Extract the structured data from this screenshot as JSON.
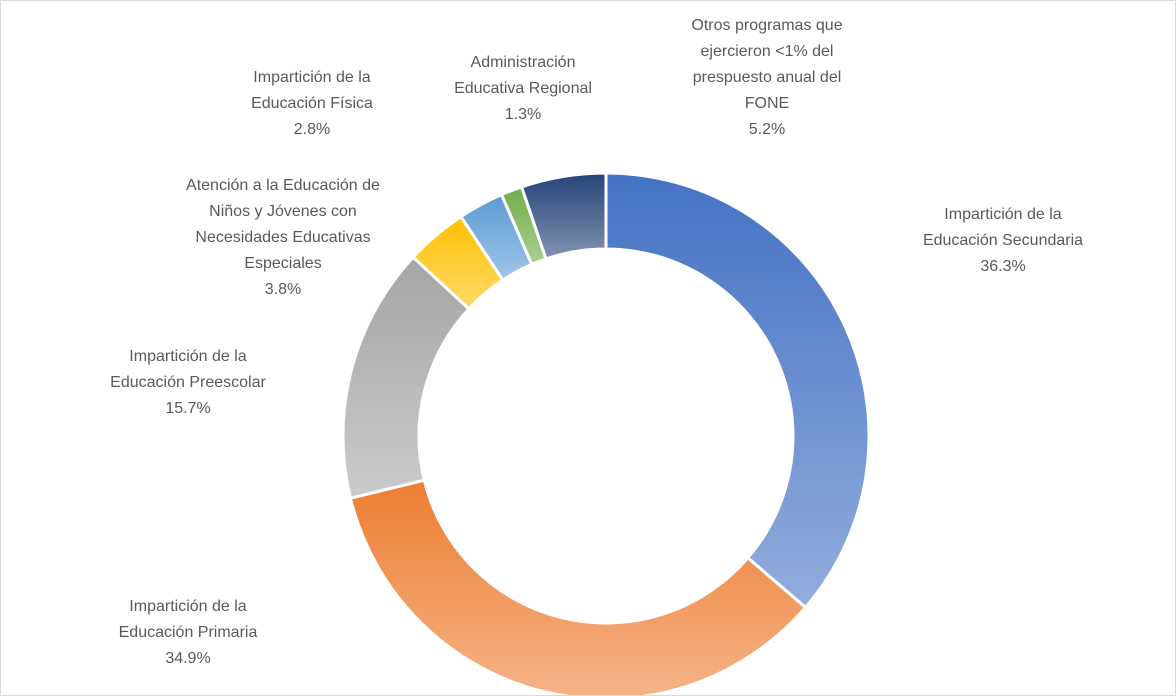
{
  "chart_data": {
    "type": "donut",
    "categories": [
      "Impartición de la Educación Secundaria",
      "Impartición de la Educación Primaria",
      "Impartición de la Educación Preescolar",
      "Atención a la Educación de Niños y Jóvenes con Necesidades Educativas Especiales",
      "Impartición de la Educación Física",
      "Administración Educativa Regional",
      "Otros programas que ejercieron <1% del prespuesto anual del FONE"
    ],
    "values": [
      36.3,
      34.9,
      15.7,
      3.8,
      2.8,
      1.3,
      5.2
    ],
    "value_labels": [
      "36.3%",
      "34.9%",
      "15.7%",
      "3.8%",
      "2.8%",
      "1.3%",
      "5.2%"
    ],
    "colors": [
      "#4472c4",
      "#ed7d31",
      "#a5a5a5",
      "#ffc000",
      "#5b9bd5",
      "#70ad47",
      "#264478"
    ]
  }
}
